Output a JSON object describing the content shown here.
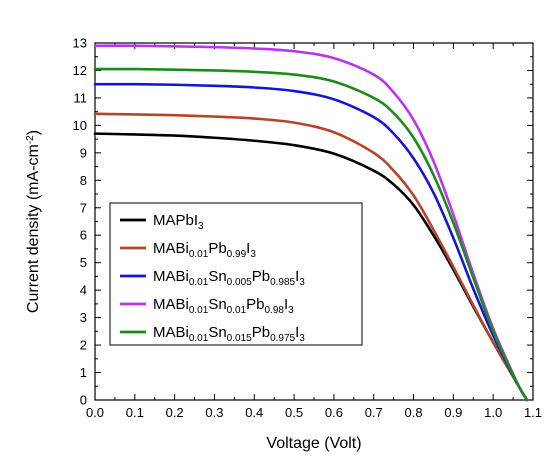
{
  "chart_data": {
    "type": "line",
    "title": "",
    "xlabel": "Voltage (Volt)",
    "ylabel_main": "Current density (mA-cm",
    "ylabel_sup": "-2",
    "ylabel_close": ")",
    "xlim": [
      0.0,
      1.1
    ],
    "ylim": [
      0,
      13
    ],
    "x_ticks": [
      "0.0",
      "0.1",
      "0.2",
      "0.3",
      "0.4",
      "0.5",
      "0.6",
      "0.7",
      "0.8",
      "0.9",
      "1.0",
      "1.1"
    ],
    "y_ticks": [
      "0",
      "1",
      "2",
      "3",
      "4",
      "5",
      "6",
      "7",
      "8",
      "9",
      "10",
      "11",
      "12",
      "13"
    ],
    "grid": false,
    "legend_position": "middle-left",
    "series": [
      {
        "name_parts": [
          [
            "MAPbI",
            ""
          ],
          [
            "3",
            "sub"
          ]
        ],
        "color": "#000000",
        "x": [
          0.0,
          0.1,
          0.2,
          0.3,
          0.4,
          0.5,
          0.6,
          0.7,
          0.75,
          0.8,
          0.85,
          0.9,
          0.95,
          1.0,
          1.05,
          1.07,
          1.085
        ],
        "y": [
          9.7,
          9.67,
          9.63,
          9.55,
          9.44,
          9.28,
          8.97,
          8.35,
          7.85,
          7.1,
          6.0,
          4.75,
          3.4,
          2.1,
          0.85,
          0.35,
          0
        ]
      },
      {
        "name_parts": [
          [
            "MABi",
            ""
          ],
          [
            "0.01",
            "sub"
          ],
          [
            "Pb",
            ""
          ],
          [
            "0.99",
            "sub"
          ],
          [
            "I",
            ""
          ],
          [
            "3",
            "sub"
          ]
        ],
        "color": "#b5452a",
        "x": [
          0.0,
          0.1,
          0.2,
          0.3,
          0.4,
          0.5,
          0.6,
          0.7,
          0.75,
          0.8,
          0.85,
          0.9,
          0.95,
          1.0,
          1.05,
          1.07,
          1.085
        ],
        "y": [
          10.42,
          10.4,
          10.37,
          10.32,
          10.25,
          10.1,
          9.75,
          9.0,
          8.35,
          7.45,
          6.2,
          4.85,
          3.45,
          2.1,
          0.85,
          0.35,
          0
        ]
      },
      {
        "name_parts": [
          [
            "MABi",
            ""
          ],
          [
            "0.01",
            "sub"
          ],
          [
            "Sn",
            ""
          ],
          [
            "0.005",
            "sub"
          ],
          [
            "Pb",
            ""
          ],
          [
            "0.985",
            "sub"
          ],
          [
            "I",
            ""
          ],
          [
            "3",
            "sub"
          ]
        ],
        "color": "#1515d6",
        "x": [
          0.0,
          0.1,
          0.2,
          0.3,
          0.4,
          0.5,
          0.6,
          0.7,
          0.75,
          0.8,
          0.85,
          0.9,
          0.95,
          1.0,
          1.05,
          1.07,
          1.085
        ],
        "y": [
          11.5,
          11.5,
          11.48,
          11.44,
          11.38,
          11.25,
          10.95,
          10.3,
          9.7,
          8.8,
          7.55,
          5.9,
          4.05,
          2.35,
          0.9,
          0.35,
          0
        ]
      },
      {
        "name_parts": [
          [
            "MABi",
            ""
          ],
          [
            "0.01",
            "sub"
          ],
          [
            "Sn",
            ""
          ],
          [
            "0.01",
            "sub"
          ],
          [
            "Pb",
            ""
          ],
          [
            "0.98",
            "sub"
          ],
          [
            "I",
            ""
          ],
          [
            "3",
            "sub"
          ]
        ],
        "color": "#bb33ee",
        "x": [
          0.0,
          0.1,
          0.2,
          0.3,
          0.4,
          0.5,
          0.6,
          0.7,
          0.75,
          0.8,
          0.85,
          0.9,
          0.95,
          1.0,
          1.05,
          1.07,
          1.085
        ],
        "y": [
          12.9,
          12.9,
          12.88,
          12.85,
          12.8,
          12.7,
          12.45,
          11.85,
          11.2,
          10.2,
          8.7,
          6.75,
          4.6,
          2.6,
          0.95,
          0.35,
          0
        ]
      },
      {
        "name_parts": [
          [
            "MABi",
            ""
          ],
          [
            "0.01",
            "sub"
          ],
          [
            "Sn",
            ""
          ],
          [
            "0.015",
            "sub"
          ],
          [
            "Pb",
            ""
          ],
          [
            "0.975",
            "sub"
          ],
          [
            "I",
            ""
          ],
          [
            "3",
            "sub"
          ]
        ],
        "color": "#1a8c1a",
        "x": [
          0.0,
          0.1,
          0.2,
          0.3,
          0.4,
          0.5,
          0.6,
          0.7,
          0.75,
          0.8,
          0.85,
          0.9,
          0.95,
          1.0,
          1.05,
          1.07,
          1.085
        ],
        "y": [
          12.05,
          12.05,
          12.03,
          12.0,
          11.95,
          11.85,
          11.6,
          11.0,
          10.45,
          9.55,
          8.2,
          6.45,
          4.45,
          2.5,
          0.92,
          0.35,
          0
        ]
      }
    ]
  }
}
